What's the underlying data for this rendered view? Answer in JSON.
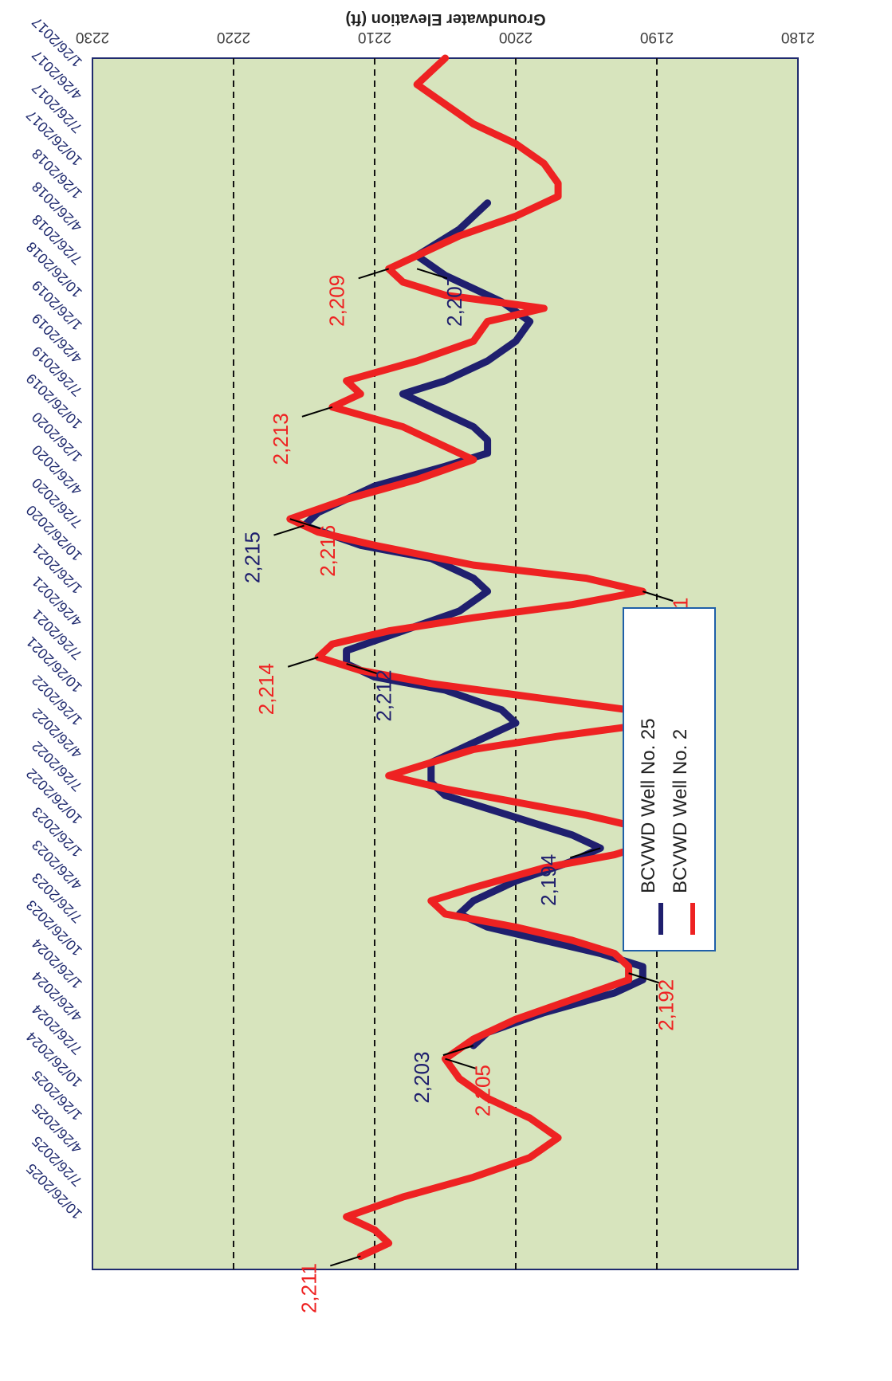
{
  "chart_data": {
    "type": "line",
    "ylabel": "Groundwater Elevation (ft)",
    "ylim": [
      2180,
      2230
    ],
    "yticks": [
      "2180",
      "2190",
      "2200",
      "2210",
      "2220",
      "2230"
    ],
    "dashed_gridlines": [
      2190,
      2200,
      2210,
      2220
    ],
    "xticks": [
      "1/26/2017",
      "4/26/2017",
      "7/26/2017",
      "10/26/2017",
      "1/26/2018",
      "4/26/2018",
      "7/26/2018",
      "10/26/2018",
      "1/26/2019",
      "4/26/2019",
      "7/26/2019",
      "10/26/2019",
      "1/26/2020",
      "4/26/2020",
      "7/26/2020",
      "10/26/2020",
      "1/26/2021",
      "4/26/2021",
      "7/26/2021",
      "10/26/2021",
      "1/26/2022",
      "4/26/2022",
      "7/26/2022",
      "10/26/2022",
      "1/26/2023",
      "4/26/2023",
      "7/26/2023",
      "10/26/2023",
      "1/26/2024",
      "4/26/2024",
      "7/26/2024",
      "10/26/2024",
      "1/26/2025",
      "4/26/2025",
      "7/26/2025",
      "10/26/2025"
    ],
    "plot_background": "#d7e4bd",
    "legend": {
      "position": "lower-center (rotated)"
    },
    "series": [
      {
        "name": "BCVWD Well No. 25",
        "color": "#1f1f6e",
        "points": [
          [
            2018.1,
            2202
          ],
          [
            2018.3,
            2204
          ],
          [
            2018.5,
            2207
          ],
          [
            2018.65,
            2205
          ],
          [
            2018.75,
            2203
          ],
          [
            2018.85,
            2201
          ],
          [
            2019.0,
            2199
          ],
          [
            2019.15,
            2200
          ],
          [
            2019.3,
            2202
          ],
          [
            2019.45,
            2205
          ],
          [
            2019.55,
            2208
          ],
          [
            2019.65,
            2206
          ],
          [
            2019.8,
            2203
          ],
          [
            2019.9,
            2202
          ],
          [
            2020.0,
            2202
          ],
          [
            2020.1,
            2205
          ],
          [
            2020.25,
            2210
          ],
          [
            2020.45,
            2214
          ],
          [
            2020.55,
            2215
          ],
          [
            2020.7,
            2211
          ],
          [
            2020.8,
            2206
          ],
          [
            2020.95,
            2203
          ],
          [
            2021.05,
            2202
          ],
          [
            2021.2,
            2204
          ],
          [
            2021.35,
            2208
          ],
          [
            2021.5,
            2212
          ],
          [
            2021.6,
            2212
          ],
          [
            2021.7,
            2210
          ],
          [
            2021.8,
            2205
          ],
          [
            2021.95,
            2201
          ],
          [
            2022.05,
            2200
          ],
          [
            2022.2,
            2203
          ],
          [
            2022.35,
            2206
          ],
          [
            2022.5,
            2206
          ],
          [
            2022.6,
            2205
          ],
          [
            2022.7,
            2202
          ],
          [
            2022.8,
            2199
          ],
          [
            2022.9,
            2196
          ],
          [
            2023.0,
            2194
          ],
          [
            2023.1,
            2196
          ],
          [
            2023.25,
            2200
          ],
          [
            2023.4,
            2203
          ],
          [
            2023.5,
            2204
          ],
          [
            2023.6,
            2202
          ],
          [
            2023.7,
            2198
          ],
          [
            2023.8,
            2194
          ],
          [
            2023.9,
            2191
          ],
          [
            2024.0,
            2191
          ],
          [
            2024.1,
            2193
          ],
          [
            2024.25,
            2198
          ],
          [
            2024.4,
            2202
          ],
          [
            2024.5,
            2203
          ]
        ]
      },
      {
        "name": "BCVWD Well No. 2",
        "color": "#ee2222",
        "points": [
          [
            2017.0,
            2205
          ],
          [
            2017.1,
            2206
          ],
          [
            2017.2,
            2207
          ],
          [
            2017.35,
            2205
          ],
          [
            2017.5,
            2203
          ],
          [
            2017.65,
            2200
          ],
          [
            2017.8,
            2198
          ],
          [
            2017.95,
            2197
          ],
          [
            2018.05,
            2197
          ],
          [
            2018.2,
            2200
          ],
          [
            2018.35,
            2204
          ],
          [
            2018.5,
            2207
          ],
          [
            2018.6,
            2209
          ],
          [
            2018.7,
            2208
          ],
          [
            2018.8,
            2205
          ],
          [
            2018.9,
            2198
          ],
          [
            2019.0,
            2202
          ],
          [
            2019.15,
            2203
          ],
          [
            2019.3,
            2207
          ],
          [
            2019.45,
            2212
          ],
          [
            2019.55,
            2211
          ],
          [
            2019.65,
            2213
          ],
          [
            2019.8,
            2208
          ],
          [
            2019.95,
            2205
          ],
          [
            2020.05,
            2203
          ],
          [
            2020.2,
            2207
          ],
          [
            2020.35,
            2212
          ],
          [
            2020.5,
            2216
          ],
          [
            2020.6,
            2214
          ],
          [
            2020.7,
            2210
          ],
          [
            2020.85,
            2203
          ],
          [
            2020.95,
            2195
          ],
          [
            2021.05,
            2191
          ],
          [
            2021.15,
            2196
          ],
          [
            2021.25,
            2203
          ],
          [
            2021.35,
            2209
          ],
          [
            2021.45,
            2213
          ],
          [
            2021.55,
            2214
          ],
          [
            2021.65,
            2211
          ],
          [
            2021.75,
            2206
          ],
          [
            2021.85,
            2199
          ],
          [
            2021.95,
            2192
          ],
          [
            2022.05,
            2190
          ],
          [
            2022.15,
            2197
          ],
          [
            2022.25,
            2203
          ],
          [
            2022.35,
            2206
          ],
          [
            2022.45,
            2209
          ],
          [
            2022.55,
            2205
          ],
          [
            2022.65,
            2200
          ],
          [
            2022.75,
            2195
          ],
          [
            2022.85,
            2191
          ],
          [
            2022.95,
            2190
          ],
          [
            2023.05,
            2193
          ],
          [
            2023.15,
            2198
          ],
          [
            2023.3,
            2203
          ],
          [
            2023.4,
            2206
          ],
          [
            2023.5,
            2205
          ],
          [
            2023.6,
            2200
          ],
          [
            2023.7,
            2196
          ],
          [
            2023.8,
            2193
          ],
          [
            2023.9,
            2192
          ],
          [
            2024.0,
            2192
          ],
          [
            2024.15,
            2196
          ],
          [
            2024.3,
            2200
          ],
          [
            2024.45,
            2203
          ],
          [
            2024.6,
            2205
          ],
          [
            2024.75,
            2204
          ],
          [
            2024.9,
            2202
          ],
          [
            2025.05,
            2199
          ],
          [
            2025.2,
            2197
          ],
          [
            2025.35,
            2199
          ],
          [
            2025.5,
            2203
          ],
          [
            2025.65,
            2208
          ],
          [
            2025.8,
            2212
          ],
          [
            2025.9,
            2210
          ],
          [
            2026.0,
            2209
          ],
          [
            2026.1,
            2211
          ]
        ]
      }
    ],
    "annotations": [
      {
        "text": "2,209",
        "x": 2018.6,
        "y": 2209,
        "color": "#ee2222"
      },
      {
        "text": "2,207",
        "x": 2018.6,
        "y": 2207,
        "color": "#1f1f6e"
      },
      {
        "text": "2,213",
        "x": 2019.65,
        "y": 2213,
        "color": "#ee2222"
      },
      {
        "text": "2,216",
        "x": 2020.5,
        "y": 2216,
        "color": "#ee2222"
      },
      {
        "text": "2,215",
        "x": 2020.55,
        "y": 2215,
        "color": "#1f1f6e"
      },
      {
        "text": "2,191",
        "x": 2021.05,
        "y": 2191,
        "color": "#ee2222"
      },
      {
        "text": "2,214",
        "x": 2021.55,
        "y": 2214,
        "color": "#ee2222"
      },
      {
        "text": "2,212",
        "x": 2021.6,
        "y": 2212,
        "color": "#1f1f6e"
      },
      {
        "text": "2,194",
        "x": 2023.0,
        "y": 2194,
        "color": "#1f1f6e"
      },
      {
        "text": "2,192",
        "x": 2023.95,
        "y": 2192,
        "color": "#ee2222"
      },
      {
        "text": "2,203",
        "x": 2024.5,
        "y": 2203,
        "color": "#1f1f6e"
      },
      {
        "text": "2,205",
        "x": 2024.6,
        "y": 2205,
        "color": "#ee2222"
      },
      {
        "text": "2,211",
        "x": 2026.1,
        "y": 2211,
        "color": "#ee2222"
      }
    ]
  }
}
